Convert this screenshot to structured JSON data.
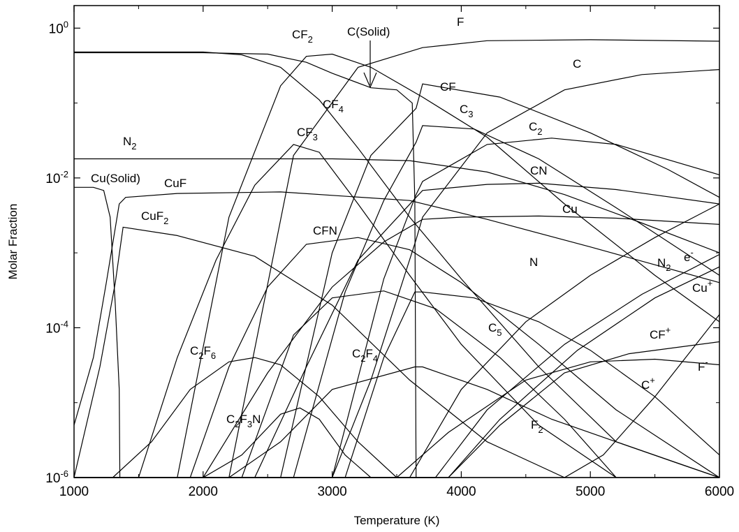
{
  "chart_data": {
    "type": "line",
    "xlabel": "Temperature (K)",
    "ylabel": "Molar Fraction",
    "xlim": [
      1000,
      6000
    ],
    "ylim": [
      1e-06,
      2
    ],
    "yscale": "log",
    "grid": false,
    "x_ticks": [
      "1000",
      "2000",
      "3000",
      "4000",
      "5000",
      "6000"
    ],
    "y_ticks": [
      {
        "base": "10",
        "exp": "0"
      },
      {
        "base": "10",
        "exp": "-2"
      },
      {
        "base": "10",
        "exp": "-4"
      },
      {
        "base": "10",
        "exp": "-6"
      }
    ],
    "series": [
      {
        "name": "F",
        "x": [
          1000,
          2200,
          2700,
          3200,
          3700,
          4200,
          5000,
          6000
        ],
        "y": [
          1e-06,
          1e-06,
          0.02,
          0.3,
          0.55,
          0.68,
          0.7,
          0.67
        ]
      },
      {
        "name": "CF2",
        "x": [
          1000,
          1800,
          2200,
          2600,
          2800,
          3000,
          3300,
          3700,
          4200,
          4800,
          5500,
          6000
        ],
        "y": [
          1e-06,
          1e-06,
          0.003,
          0.17,
          0.42,
          0.45,
          0.3,
          0.12,
          0.035,
          0.0045,
          0.0005,
          0.00012
        ]
      },
      {
        "name": "C(Solid)",
        "x": [
          1000,
          2000,
          2500,
          2800,
          3000,
          3300,
          3500,
          3620,
          3640,
          3650
        ],
        "y": [
          0.47,
          0.47,
          0.45,
          0.35,
          0.25,
          0.16,
          0.15,
          0.1,
          0.005,
          1e-06
        ]
      },
      {
        "name": "CF4",
        "x": [
          1000,
          2000,
          2300,
          2600,
          2900,
          3200,
          3600,
          4000,
          4600,
          5200,
          6000
        ],
        "y": [
          0.48,
          0.48,
          0.44,
          0.3,
          0.11,
          0.025,
          0.003,
          0.00045,
          3e-05,
          3e-06,
          1e-06
        ]
      },
      {
        "name": "CF",
        "x": [
          1000,
          2600,
          3000,
          3300,
          3650,
          3700,
          4300,
          5000,
          5600,
          6000
        ],
        "y": [
          1e-06,
          1e-06,
          0.001,
          0.02,
          0.085,
          0.18,
          0.12,
          0.04,
          0.013,
          0.0055
        ]
      },
      {
        "name": "C",
        "x": [
          1000,
          3000,
          3300,
          3650,
          3700,
          4200,
          4800,
          5400,
          6000
        ],
        "y": [
          1e-06,
          1e-06,
          2e-05,
          0.0015,
          0.003,
          0.04,
          0.15,
          0.24,
          0.28
        ]
      },
      {
        "name": "C3",
        "x": [
          1000,
          2700,
          3100,
          3400,
          3650,
          3700,
          4100,
          4600,
          5200,
          6000
        ],
        "y": [
          1e-06,
          1e-06,
          0.0003,
          0.005,
          0.03,
          0.05,
          0.045,
          0.018,
          0.004,
          0.0005
        ]
      },
      {
        "name": "C2",
        "x": [
          1000,
          3000,
          3400,
          3650,
          3700,
          4200,
          4700,
          5200,
          6000
        ],
        "y": [
          1e-06,
          1e-06,
          0.00045,
          0.006,
          0.009,
          0.028,
          0.034,
          0.028,
          0.011
        ]
      },
      {
        "name": "CF3",
        "x": [
          1000,
          1500,
          1800,
          2100,
          2400,
          2700,
          2900,
          3200,
          3600,
          4000,
          4600,
          5200,
          6000
        ],
        "y": [
          1e-06,
          1e-06,
          4e-05,
          0.0008,
          0.008,
          0.028,
          0.022,
          0.0045,
          0.0005,
          6e-05,
          5e-06,
          1e-06,
          1e-06
        ]
      },
      {
        "name": "N2",
        "x": [
          1000,
          3000,
          3600,
          4200,
          4800,
          5400,
          6000
        ],
        "y": [
          0.018,
          0.018,
          0.017,
          0.012,
          0.006,
          0.0025,
          0.001
        ]
      },
      {
        "name": "CN",
        "x": [
          1000,
          2400,
          2800,
          3200,
          3650,
          3700,
          4200,
          4600,
          5200,
          6000
        ],
        "y": [
          1e-06,
          1e-06,
          3e-05,
          0.0008,
          0.0055,
          0.0068,
          0.0082,
          0.0085,
          0.007,
          0.0045
        ]
      },
      {
        "name": "Cu(Solid)",
        "x": [
          1000,
          1150,
          1230,
          1280,
          1320,
          1350,
          1355
        ],
        "y": [
          0.0075,
          0.0075,
          0.0068,
          0.003,
          0.0002,
          1.5e-05,
          1e-06
        ]
      },
      {
        "name": "CuF",
        "x": [
          1000,
          1150,
          1250,
          1350,
          1400,
          1800,
          2600,
          3600,
          4200,
          5000,
          6000
        ],
        "y": [
          5e-06,
          4e-05,
          0.0004,
          0.0045,
          0.0055,
          0.0062,
          0.0065,
          0.005,
          0.0028,
          0.0012,
          0.0004
        ]
      },
      {
        "name": "CuF2",
        "x": [
          1000,
          1200,
          1320,
          1380,
          1800,
          2400,
          3000,
          3600,
          4200,
          4800,
          5500,
          6000
        ],
        "y": [
          1e-06,
          3e-05,
          0.0004,
          0.0022,
          0.0017,
          0.0009,
          0.0002,
          2e-05,
          3e-06,
          1e-06,
          1e-06,
          1e-06
        ]
      },
      {
        "name": "Cu",
        "x": [
          1000,
          2000,
          2500,
          3000,
          3400,
          3700,
          4000,
          4600,
          5200,
          6000
        ],
        "y": [
          1e-06,
          1e-06,
          2.5e-05,
          0.00035,
          0.0014,
          0.0028,
          0.003,
          0.0031,
          0.0029,
          0.0024
        ]
      },
      {
        "name": "CFN",
        "x": [
          1000,
          1900,
          2200,
          2500,
          2800,
          3200,
          3600,
          4000,
          4600,
          5200,
          6000
        ],
        "y": [
          1e-06,
          1e-06,
          3e-05,
          0.00035,
          0.0013,
          0.0016,
          0.0011,
          0.0004,
          6e-05,
          8e-06,
          1e-06
        ]
      },
      {
        "name": "N",
        "x": [
          1000,
          3600,
          4000,
          4500,
          5000,
          5500,
          6000
        ],
        "y": [
          1e-06,
          1e-06,
          1.5e-05,
          0.00012,
          0.0005,
          0.0016,
          0.0045
        ]
      },
      {
        "name": "e-",
        "x": [
          1000,
          3800,
          4200,
          4800,
          5400,
          6000
        ],
        "y": [
          1e-06,
          1e-06,
          8e-06,
          6e-05,
          0.00028,
          0.00095
        ]
      },
      {
        "name": "Cu+",
        "x": [
          1000,
          3900,
          4300,
          4900,
          5500,
          6000
        ],
        "y": [
          1e-06,
          1e-06,
          6e-06,
          5e-05,
          0.00025,
          0.00065
        ]
      },
      {
        "name": "CF+",
        "x": [
          1000,
          3900,
          4300,
          4800,
          5300,
          6000
        ],
        "y": [
          1e-06,
          1e-06,
          5e-06,
          2.5e-05,
          4.5e-05,
          6.5e-05
        ]
      },
      {
        "name": "F-",
        "x": [
          1000,
          3500,
          3900,
          4500,
          5000,
          5500,
          6000
        ],
        "y": [
          1e-06,
          1e-06,
          4e-06,
          2e-05,
          3.5e-05,
          3.8e-05,
          3.2e-05
        ]
      },
      {
        "name": "C+",
        "x": [
          1000,
          4800,
          5100,
          5500,
          6000
        ],
        "y": [
          1e-06,
          1e-06,
          2e-06,
          1.2e-05,
          0.00015
        ]
      },
      {
        "name": "C5",
        "x": [
          1000,
          3100,
          3400,
          3640,
          3700,
          4100,
          4600,
          5000,
          5500,
          6000
        ],
        "y": [
          1e-06,
          1e-06,
          4e-05,
          0.0003,
          0.0003,
          0.00025,
          0.00012,
          5e-05,
          1.2e-05,
          2e-06
        ]
      },
      {
        "name": "C2F6",
        "x": [
          1000,
          1300,
          1600,
          1900,
          2200,
          2400,
          2600,
          2900,
          3200,
          3500,
          3800
        ],
        "y": [
          1e-06,
          1e-06,
          3e-06,
          1.5e-05,
          3.5e-05,
          4e-05,
          3.2e-05,
          1.2e-05,
          3e-06,
          1e-06,
          1e-06
        ]
      },
      {
        "name": "C2F4",
        "x": [
          1000,
          2300,
          2700,
          3000,
          3400,
          3800,
          4300,
          4800,
          5200
        ],
        "y": [
          1e-06,
          1e-06,
          8e-05,
          0.00025,
          0.00031,
          0.00018,
          4e-05,
          6e-06,
          1e-06
        ]
      },
      {
        "name": "C2F3N",
        "x": [
          1000,
          2000,
          2300,
          2600,
          2750,
          2900,
          3100,
          3300
        ],
        "y": [
          1e-06,
          1e-06,
          2e-06,
          7e-06,
          8.5e-06,
          6e-06,
          2e-06,
          1e-06
        ]
      },
      {
        "name": "F2",
        "x": [
          1000,
          2200,
          2600,
          3000,
          3640,
          3700,
          4200,
          4700,
          5200,
          5700,
          6000
        ],
        "y": [
          1e-06,
          1e-06,
          3e-06,
          1.5e-05,
          3e-05,
          3e-05,
          1.5e-05,
          6e-06,
          3e-06,
          1.5e-06,
          1e-06
        ]
      }
    ],
    "labels": [
      {
        "base": "F",
        "sub": "",
        "sup": ""
      },
      {
        "base": "CF",
        "sub": "2",
        "sup": ""
      },
      {
        "base": "C(Solid)",
        "sub": "",
        "sup": ""
      },
      {
        "base": "CF",
        "sub": "",
        "sup": ""
      },
      {
        "base": "C",
        "sub": "",
        "sup": ""
      },
      {
        "base": "CF",
        "sub": "4",
        "sup": ""
      },
      {
        "base": "C",
        "sub": "3",
        "sup": ""
      },
      {
        "base": "C",
        "sub": "2",
        "sup": ""
      },
      {
        "base": "CF",
        "sub": "3",
        "sup": ""
      },
      {
        "base": "N",
        "sub": "2",
        "sup": ""
      },
      {
        "base": "CN",
        "sub": "",
        "sup": ""
      },
      {
        "base": "Cu(Solid)",
        "sub": "",
        "sup": ""
      },
      {
        "base": "CuF",
        "sub": "",
        "sup": ""
      },
      {
        "base": "Cu",
        "sub": "",
        "sup": ""
      },
      {
        "base": "CuF",
        "sub": "2",
        "sup": ""
      },
      {
        "base": "CFN",
        "sub": "",
        "sup": ""
      },
      {
        "base": "N",
        "sub": "",
        "sup": ""
      },
      {
        "base": "N",
        "sub": "2",
        "sup": ""
      },
      {
        "base": "e",
        "sub": "",
        "sup": "-"
      },
      {
        "base": "Cu",
        "sub": "",
        "sup": "+"
      },
      {
        "base": "C",
        "sub": "5",
        "sup": ""
      },
      {
        "base": "CF",
        "sub": "",
        "sup": "+"
      },
      {
        "base": "F",
        "sub": "",
        "sup": "-"
      },
      {
        "base": "C",
        "sub": "",
        "sup": "+"
      },
      {
        "base": "F",
        "sub": "2",
        "sup": ""
      }
    ],
    "compound_labels": [
      {
        "parts": [
          {
            "t": "C",
            "sub": "2"
          },
          {
            "t": "F",
            "sub": "6"
          }
        ]
      },
      {
        "parts": [
          {
            "t": "C",
            "sub": "2"
          },
          {
            "t": "F",
            "sub": "4"
          }
        ]
      },
      {
        "parts": [
          {
            "t": "C",
            "sub": "2"
          },
          {
            "t": "F",
            "sub": "3"
          },
          {
            "t": "N",
            "sub": ""
          }
        ]
      }
    ]
  }
}
